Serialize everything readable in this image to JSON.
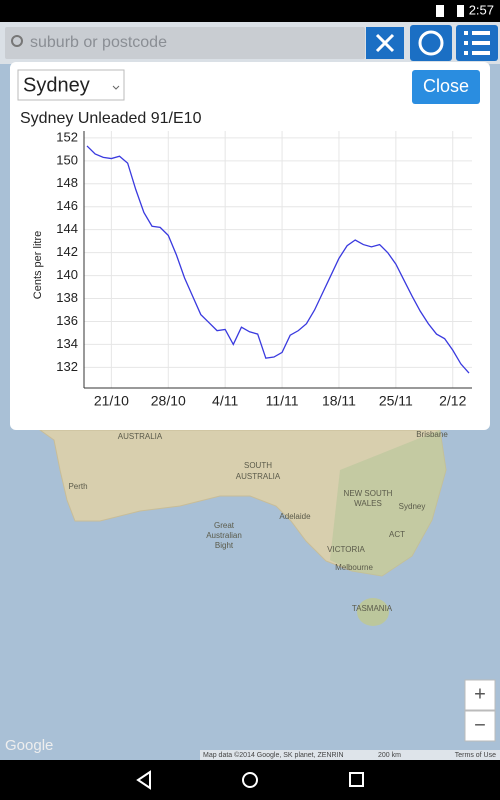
{
  "status_bar": {
    "time": "2:57"
  },
  "search": {
    "placeholder": "suburb or postcode"
  },
  "dialog": {
    "select": "Sydney",
    "close": "Close"
  },
  "chart_data": {
    "type": "line",
    "title": "Sydney Unleaded 91/E10",
    "y_label": "Cents per litre",
    "categories": [
      null,
      null,
      null,
      "21/10",
      null,
      null,
      null,
      null,
      null,
      null,
      "28/10",
      null,
      null,
      null,
      null,
      null,
      null,
      "4/11",
      null,
      null,
      null,
      null,
      null,
      null,
      "11/11",
      null,
      null,
      null,
      null,
      null,
      null,
      "18/11",
      null,
      null,
      null,
      null,
      null,
      null,
      "25/11",
      null,
      null,
      null,
      null,
      null,
      null,
      "2/12",
      null,
      null
    ],
    "values": [
      151.3,
      150.6,
      150.3,
      150.2,
      150.4,
      149.8,
      147.5,
      145.5,
      144.3,
      144.2,
      143.5,
      141.8,
      139.8,
      138.2,
      136.6,
      135.9,
      135.2,
      135.3,
      134.0,
      135.5,
      135.1,
      134.9,
      132.8,
      132.9,
      133.3,
      134.8,
      135.2,
      135.8,
      137.0,
      138.5,
      140.0,
      141.5,
      142.6,
      143.1,
      142.7,
      142.5,
      142.7,
      142.0,
      141.0,
      139.6,
      138.2,
      136.9,
      135.8,
      134.9,
      134.5,
      133.5,
      132.3,
      131.5
    ],
    "color": "#3a3adf",
    "ylim": [
      130.2,
      152.6
    ],
    "yticks": [
      132,
      134,
      136,
      138,
      140,
      142,
      144,
      146,
      148,
      150,
      152
    ],
    "grid": true
  },
  "map": {
    "labels": [
      "AUSTRALIA",
      "SOUTH",
      "AUSTRALIA",
      "Perth",
      "Adelaide",
      "NEW SOUTH",
      "WALES",
      "Sydney",
      "ACT",
      "VICTORIA",
      "Melbourne",
      "TASMANIA",
      "Brisbane",
      "Great",
      "Australian",
      "Bight"
    ],
    "zoom_in": "+",
    "zoom_out": "−",
    "logo": "Google",
    "attribution": "Map data ©2014 Google, SK planet, ZENRIN",
    "scale": "200 km",
    "terms": "Terms of Use"
  }
}
